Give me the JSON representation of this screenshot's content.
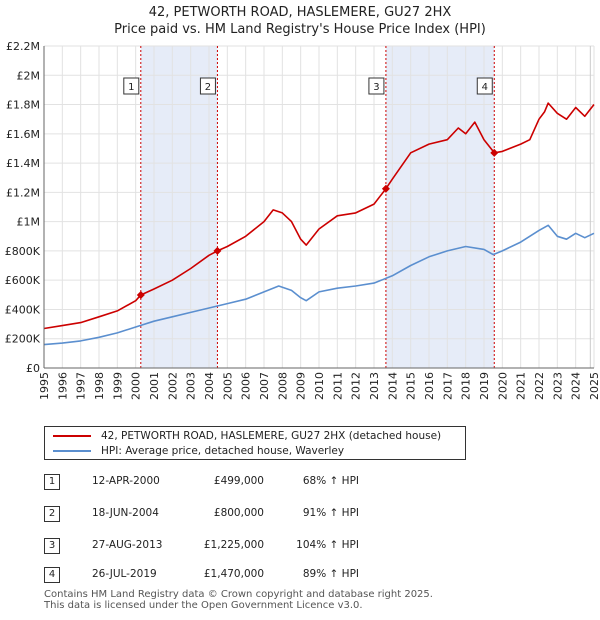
{
  "chart_data": {
    "type": "line",
    "title": "42, PETWORTH ROAD, HASLEMERE, GU27 2HX",
    "subtitle": "Price paid vs. HM Land Registry's House Price Index (HPI)",
    "xlim": [
      1995.0,
      2025.0
    ],
    "ylim": [
      0,
      2200000
    ],
    "x_ticks": [
      1995,
      1996,
      1997,
      1998,
      1999,
      2000,
      2001,
      2002,
      2003,
      2004,
      2005,
      2006,
      2007,
      2008,
      2009,
      2010,
      2011,
      2012,
      2013,
      2014,
      2015,
      2016,
      2017,
      2018,
      2019,
      2020,
      2021,
      2022,
      2023,
      2024,
      2025
    ],
    "x_tick_labels": [
      "1995",
      "1996",
      "1997",
      "1998",
      "1999",
      "2000",
      "2001",
      "2002",
      "2003",
      "2004",
      "2005",
      "2006",
      "2007",
      "2008",
      "2009",
      "2010",
      "2011",
      "2012",
      "2013",
      "2014",
      "2015",
      "2016",
      "2017",
      "2018",
      "2019",
      "2020",
      "2021",
      "2022",
      "2023",
      "2024",
      "2025"
    ],
    "y_ticks": [
      0,
      200000,
      400000,
      600000,
      800000,
      1000000,
      1200000,
      1400000,
      1600000,
      1800000,
      2000000,
      2200000
    ],
    "y_tick_labels": [
      "£0",
      "£200K",
      "£400K",
      "£600K",
      "£800K",
      "£1M",
      "£1.2M",
      "£1.4M",
      "£1.6M",
      "£1.8M",
      "£2M",
      "£2.2M"
    ],
    "series": [
      {
        "name": "42, PETWORTH ROAD, HASLEMERE, GU27 2HX (detached house)",
        "color": "#cc0000",
        "x": [
          1995.0,
          1996.0,
          1997.0,
          1998.0,
          1999.0,
          2000.0,
          2000.28,
          2001.0,
          2002.0,
          2003.0,
          2004.0,
          2004.46,
          2005.0,
          2006.0,
          2007.0,
          2007.5,
          2008.0,
          2008.5,
          2009.0,
          2009.3,
          2010.0,
          2011.0,
          2012.0,
          2013.0,
          2013.65,
          2014.0,
          2015.0,
          2016.0,
          2017.0,
          2017.6,
          2018.0,
          2018.5,
          2019.0,
          2019.56,
          2020.0,
          2021.0,
          2021.5,
          2022.0,
          2022.3,
          2022.5,
          2023.0,
          2023.5,
          2024.0,
          2024.5,
          2025.0
        ],
        "y": [
          270000,
          290000,
          310000,
          350000,
          390000,
          460000,
          499000,
          540000,
          600000,
          680000,
          770000,
          800000,
          830000,
          900000,
          1000000,
          1080000,
          1060000,
          1000000,
          880000,
          840000,
          950000,
          1040000,
          1060000,
          1120000,
          1225000,
          1290000,
          1470000,
          1530000,
          1560000,
          1640000,
          1600000,
          1680000,
          1560000,
          1470000,
          1480000,
          1530000,
          1560000,
          1700000,
          1750000,
          1810000,
          1740000,
          1700000,
          1780000,
          1720000,
          1800000
        ]
      },
      {
        "name": "HPI: Average price, detached house, Waverley",
        "color": "#5b8fcf",
        "x": [
          1995.0,
          1996.0,
          1997.0,
          1998.0,
          1999.0,
          2000.0,
          2001.0,
          2002.0,
          2003.0,
          2004.0,
          2005.0,
          2006.0,
          2007.0,
          2007.8,
          2008.5,
          2009.0,
          2009.3,
          2010.0,
          2011.0,
          2012.0,
          2013.0,
          2014.0,
          2015.0,
          2016.0,
          2017.0,
          2018.0,
          2019.0,
          2019.5,
          2020.0,
          2021.0,
          2022.0,
          2022.5,
          2023.0,
          2023.5,
          2024.0,
          2024.5,
          2025.0
        ],
        "y": [
          160000,
          170000,
          185000,
          210000,
          240000,
          280000,
          320000,
          350000,
          380000,
          410000,
          440000,
          470000,
          520000,
          560000,
          530000,
          480000,
          460000,
          520000,
          545000,
          560000,
          580000,
          630000,
          700000,
          760000,
          800000,
          830000,
          810000,
          775000,
          800000,
          860000,
          940000,
          975000,
          900000,
          880000,
          920000,
          890000,
          920000
        ]
      }
    ],
    "annotations": [
      {
        "label": "1",
        "x": 2000.28
      },
      {
        "label": "2",
        "x": 2004.46
      },
      {
        "label": "3",
        "x": 2013.65
      },
      {
        "label": "4",
        "x": 2019.56
      }
    ],
    "shaded_periods": [
      [
        2000.28,
        2004.46
      ],
      [
        2013.65,
        2019.56
      ]
    ],
    "sale_points": [
      {
        "x": 2000.28,
        "y": 499000
      },
      {
        "x": 2004.46,
        "y": 800000
      },
      {
        "x": 2013.65,
        "y": 1225000
      },
      {
        "x": 2019.56,
        "y": 1470000
      }
    ]
  },
  "legend": {
    "property_label": "42, PETWORTH ROAD, HASLEMERE, GU27 2HX (detached house)",
    "hpi_label": "HPI: Average price, detached house, Waverley"
  },
  "transactions": [
    {
      "num": "1",
      "date": "12-APR-2000",
      "price": "£499,000",
      "hpi": "68% ↑ HPI"
    },
    {
      "num": "2",
      "date": "18-JUN-2004",
      "price": "£800,000",
      "hpi": "91% ↑ HPI"
    },
    {
      "num": "3",
      "date": "27-AUG-2013",
      "price": "£1,225,000",
      "hpi": "104% ↑ HPI"
    },
    {
      "num": "4",
      "date": "26-JUL-2019",
      "price": "£1,470,000",
      "hpi": "89% ↑ HPI"
    }
  ],
  "footer": {
    "line1": "Contains HM Land Registry data © Crown copyright and database right 2025.",
    "line2": "This data is licensed under the Open Government Licence v3.0."
  }
}
